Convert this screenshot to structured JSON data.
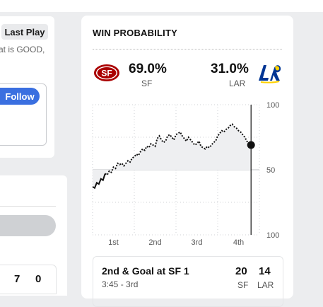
{
  "left_panel": {
    "last_play_label": "Last Play",
    "snippet": "at is GOOD,",
    "follow_label": "Follow",
    "scores": [
      "7",
      "0"
    ]
  },
  "win_probability": {
    "title": "WIN PROBABILITY",
    "home": {
      "abbr": "SF",
      "pct": "69.0%",
      "color": "#aa0000",
      "logo_icon": "49ers-logo-icon"
    },
    "away": {
      "abbr": "LAR",
      "pct": "31.0%",
      "color": "#003594",
      "logo_icon": "rams-logo-icon"
    },
    "y_labels": [
      "100",
      "50",
      "100"
    ],
    "x_labels": [
      "1st",
      "2nd",
      "3rd",
      "4th"
    ]
  },
  "chart_data": {
    "type": "line",
    "x": [
      0,
      0.05,
      0.1,
      0.15,
      0.2,
      0.25,
      0.3,
      0.35,
      0.4,
      0.45,
      0.5,
      0.55,
      0.6,
      0.65,
      0.7,
      0.75,
      0.8,
      0.85,
      0.9,
      0.95,
      1.0,
      1.05,
      1.1,
      1.15,
      1.2,
      1.25,
      1.3,
      1.35,
      1.4,
      1.45,
      1.5,
      1.55,
      1.6,
      1.65,
      1.7,
      1.75,
      1.8,
      1.85,
      1.9,
      1.95,
      2.0,
      2.05,
      2.1,
      2.15,
      2.2,
      2.25,
      2.3,
      2.35,
      2.4,
      2.45,
      2.5,
      2.55,
      2.6,
      2.65,
      2.7,
      2.75,
      2.8,
      2.85,
      2.9,
      2.95,
      3.0,
      3.05,
      3.1,
      3.15,
      3.2,
      3.25,
      3.3,
      3.35,
      3.4,
      3.45,
      3.5,
      3.55,
      3.6,
      3.65,
      3.7,
      3.75,
      3.8
    ],
    "series": [
      {
        "values": [
          37,
          36,
          40,
          39,
          43,
          42,
          47,
          46,
          49,
          48,
          52,
          51,
          55,
          54,
          55,
          53,
          55,
          57,
          56,
          59,
          60,
          62,
          61,
          64,
          66,
          65,
          68,
          67,
          70,
          69,
          68,
          74,
          76,
          73,
          71,
          72,
          76,
          77,
          75,
          73,
          77,
          78,
          79,
          76,
          74,
          72,
          75,
          73,
          71,
          69,
          70,
          72,
          68,
          67,
          66,
          68,
          67,
          69,
          71,
          72,
          76,
          78,
          80,
          79,
          81,
          82,
          84,
          85,
          83,
          82,
          80,
          79,
          77,
          75,
          72,
          70,
          69
        ]
      }
    ],
    "ylim": [
      0,
      100
    ],
    "xlim": [
      0,
      4
    ]
  }
}
